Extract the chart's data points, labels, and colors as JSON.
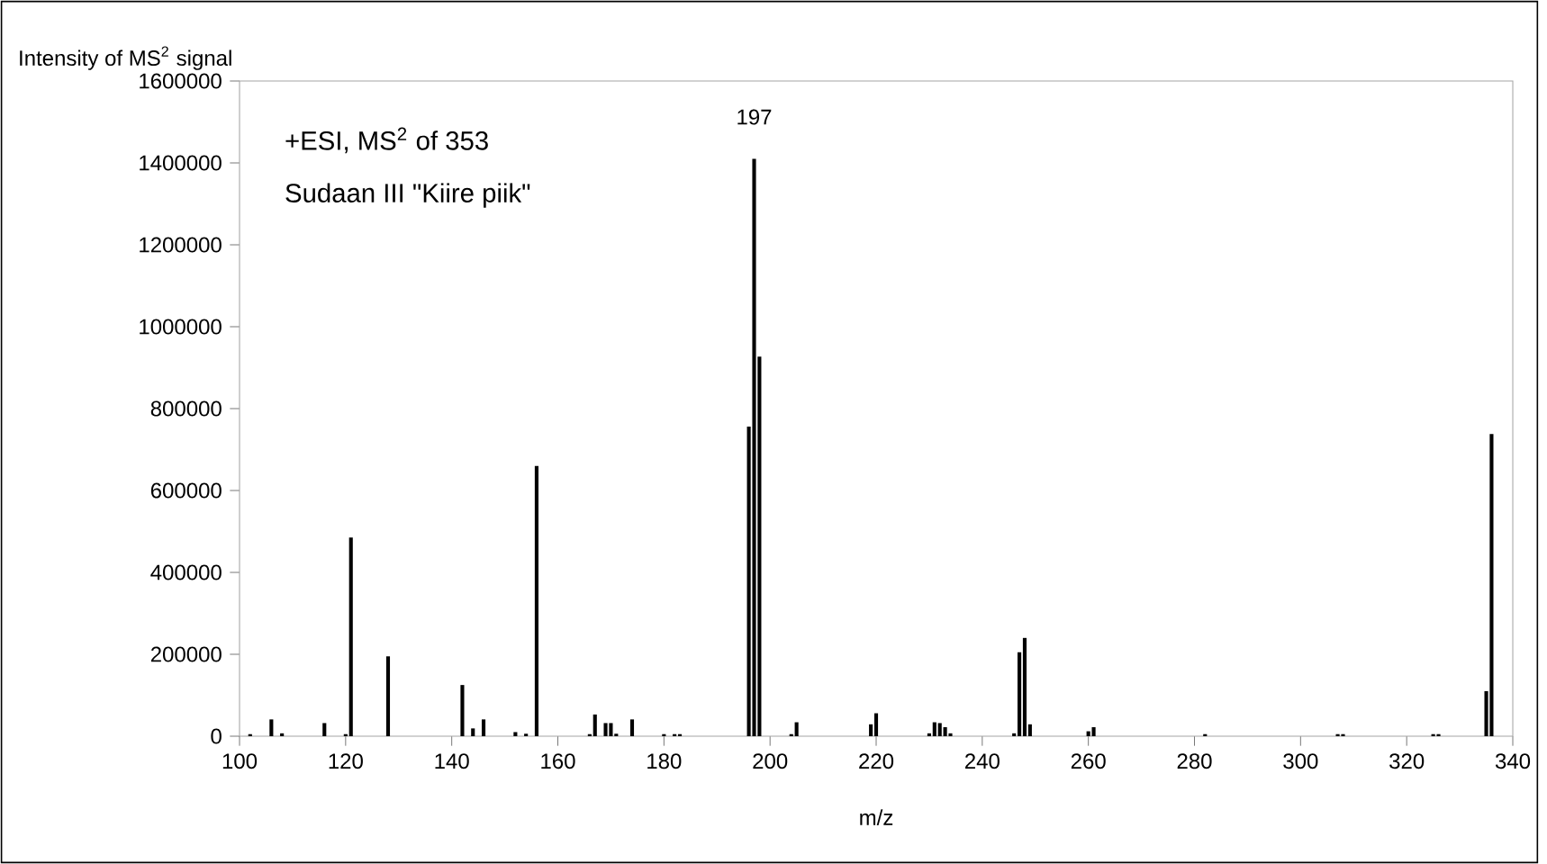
{
  "chart_data": {
    "type": "bar",
    "xlabel": "m/z",
    "ylabel": "Intensity of MS$^{2}$ signal",
    "color": "#000000",
    "x": [
      102,
      106,
      108,
      116,
      120,
      121,
      128,
      142,
      144,
      146,
      152,
      154,
      156,
      166,
      167,
      169,
      170,
      171,
      174,
      180,
      182,
      183,
      196,
      197,
      198,
      204,
      205,
      219,
      220,
      230,
      231,
      232,
      233,
      234,
      246,
      247,
      248,
      249,
      260,
      261,
      282,
      307,
      308,
      325,
      326,
      335,
      336
    ],
    "values": [
      5000,
      41000,
      7000,
      32000,
      5000,
      485000,
      195000,
      125000,
      19000,
      41000,
      10000,
      6000,
      660000,
      5000,
      53000,
      32000,
      32000,
      6000,
      41000,
      5000,
      5000,
      5000,
      756000,
      1410000,
      927000,
      5000,
      34000,
      29000,
      56000,
      7000,
      34000,
      32000,
      22000,
      7000,
      7000,
      205000,
      240000,
      29000,
      12000,
      22000,
      5000,
      5000,
      5000,
      5000,
      5000,
      110000,
      738000
    ],
    "xlim": [
      100,
      340
    ],
    "xticks": [
      100,
      120,
      140,
      160,
      180,
      200,
      220,
      240,
      260,
      280,
      300,
      320,
      340
    ],
    "ylim": [
      0,
      1600000
    ],
    "yticks": [
      0,
      200000,
      400000,
      600000,
      800000,
      1000000,
      1200000,
      1400000,
      1600000
    ],
    "grid": false,
    "annotations": [
      "+ESI, MS$^{2}$ of 353",
      "Sudaan III \"Kiire piik\"",
      {
        "text": "197",
        "x": 197,
        "y": 1410000
      }
    ]
  }
}
